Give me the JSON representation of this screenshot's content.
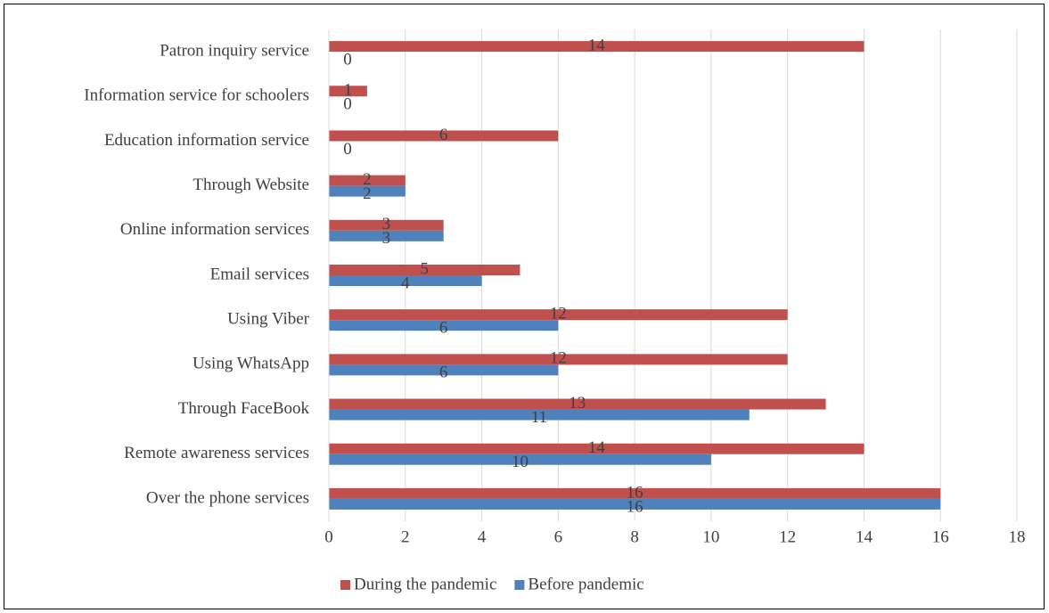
{
  "chart_data": {
    "type": "bar",
    "orientation": "horizontal",
    "categories": [
      "Patron inquiry  service",
      "Information service for schoolers",
      "Education information service",
      "Through Website",
      "Online information services",
      "Email services",
      "Using Viber",
      "Using WhatsApp",
      "Through FaceBook",
      "Remote awareness services",
      "Over the phone services"
    ],
    "series": [
      {
        "name": "During the pandemic",
        "color": "#c0504d",
        "values": [
          14,
          1,
          6,
          2,
          3,
          5,
          12,
          12,
          13,
          14,
          16
        ]
      },
      {
        "name": "Before pandemic",
        "color": "#4f81bd",
        "values": [
          0,
          0,
          0,
          2,
          3,
          4,
          6,
          6,
          11,
          10,
          16
        ]
      }
    ],
    "xlim": [
      0,
      18
    ],
    "xticks": [
      0,
      2,
      4,
      6,
      8,
      10,
      12,
      14,
      16,
      18
    ],
    "grid": true,
    "legend": "bottom"
  }
}
